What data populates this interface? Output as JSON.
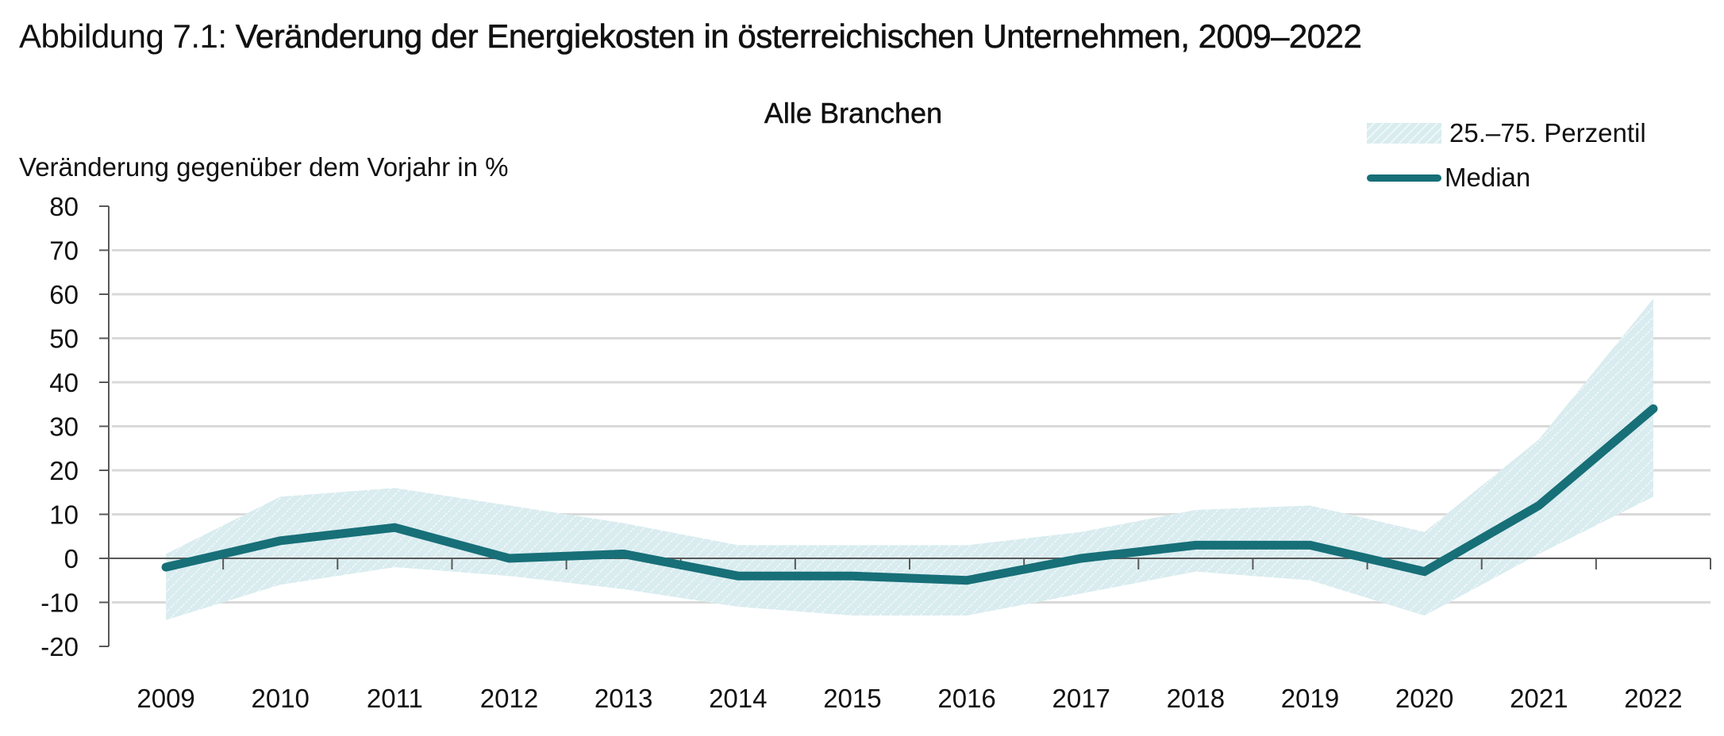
{
  "figure": {
    "title_prefix": "Abbildung 7.1: ",
    "title_main": "Veränderung der Energiekosten in österreichischen Unternehmen, 2009–2022",
    "subtitle": "Alle Branchen",
    "ylabel": "Veränderung gegenüber dem Vorjahr in %"
  },
  "legend": {
    "band_label": "25.–75. Perzentil",
    "median_label": "Median"
  },
  "colors": {
    "median": "#176f78",
    "band": "#d9ecef",
    "band_stripe": "#f3f9fa",
    "grid": "#d9d9d9",
    "axis": "#595959"
  },
  "chart_data": {
    "type": "area",
    "title": "Veränderung der Energiekosten in österreichischen Unternehmen, 2009–2022",
    "subtitle": "Alle Branchen",
    "xlabel": "",
    "ylabel": "Veränderung gegenüber dem Vorjahr in %",
    "ylim": [
      -20,
      80
    ],
    "yticks": [
      -20,
      -10,
      0,
      10,
      20,
      30,
      40,
      50,
      60,
      70,
      80
    ],
    "grid": true,
    "legend_position": "top-right",
    "categories": [
      "2009",
      "2010",
      "2011",
      "2012",
      "2013",
      "2014",
      "2015",
      "2016",
      "2017",
      "2018",
      "2019",
      "2020",
      "2021",
      "2022"
    ],
    "series": [
      {
        "name": "Median",
        "type": "line",
        "values": [
          -2,
          4,
          7,
          0,
          1,
          -4,
          -4,
          -5,
          0,
          3,
          3,
          -3,
          12,
          34
        ]
      },
      {
        "name": "25. Perzentil",
        "type": "band-lower",
        "values": [
          -14,
          -6,
          -2,
          -4,
          -7,
          -11,
          -13,
          -13,
          -8,
          -3,
          -5,
          -13,
          1,
          14
        ]
      },
      {
        "name": "75. Perzentil",
        "type": "band-upper",
        "values": [
          1,
          14,
          16,
          12,
          8,
          3,
          3,
          3,
          6,
          11,
          12,
          6,
          27,
          59
        ]
      }
    ]
  }
}
